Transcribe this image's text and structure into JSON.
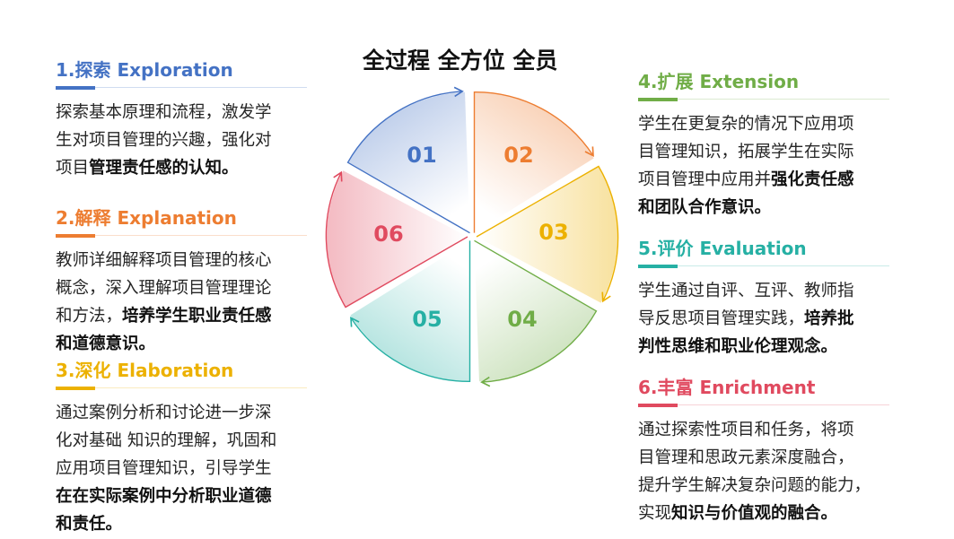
{
  "title": "全过程 全方位 全员",
  "stages": [
    {
      "num": "01",
      "title": "1.探索 Exploration",
      "color": "#4472c4",
      "lines": [
        [
          {
            "t": "探索基本原理和流程，激发学"
          }
        ],
        [
          {
            "t": "生对项目管理的兴趣，强化对"
          }
        ],
        [
          {
            "t": "项目"
          },
          {
            "t": "管理责任感的认知。",
            "b": true
          }
        ]
      ]
    },
    {
      "num": "02",
      "title": "2.解释 Explanation",
      "color": "#ed7d31",
      "lines": [
        [
          {
            "t": " 教师详细解释项目管理的核心"
          }
        ],
        [
          {
            "t": "概念，深入理解项目管理理论"
          }
        ],
        [
          {
            "t": "和方法，"
          },
          {
            "t": "培养学生职业责任感",
            "b": true
          }
        ],
        [
          {
            "t": "和道德意识。",
            "b": true
          }
        ]
      ]
    },
    {
      "num": "03",
      "title": "3.深化 Elaboration",
      "color": "#ecb100",
      "lines": [
        [
          {
            "t": "通过案例分析和讨论进一步深"
          }
        ],
        [
          {
            "t": "化对基础  知识的理解，巩固和"
          }
        ],
        [
          {
            "t": "应用项目管理知识，引导学生"
          }
        ],
        [
          {
            "t": "在在实际案例中分析职业道德",
            "b": true
          }
        ],
        [
          {
            "t": "和责任。",
            "b": true
          }
        ]
      ]
    },
    {
      "num": "04",
      "title": "4.扩展 Extension",
      "color": "#70ad47",
      "lines": [
        [
          {
            "t": "学生在更复杂的情况下应用项"
          }
        ],
        [
          {
            "t": "目管理知识，拓展学生在实际"
          }
        ],
        [
          {
            "t": "项目管理中应用并"
          },
          {
            "t": "强化责任感",
            "b": true
          }
        ],
        [
          {
            "t": "和团队合作意识。",
            "b": true
          }
        ]
      ]
    },
    {
      "num": "05",
      "title": "5.评价 Evaluation",
      "color": "#26b0a4",
      "lines": [
        [
          {
            "t": "学生通过自评、互评、教师指"
          }
        ],
        [
          {
            "t": "导反思项目管理实践，"
          },
          {
            "t": "培养批",
            "b": true
          }
        ],
        [
          {
            "t": "判性思维和职业伦理观念。",
            "b": true
          }
        ]
      ]
    },
    {
      "num": "06",
      "title": "6.丰富 Enrichment",
      "color": "#e04a5f",
      "lines": [
        [
          {
            "t": "通过探索性项目和任务，将项"
          }
        ],
        [
          {
            "t": "目管理和思政元素深度融合，"
          }
        ],
        [
          {
            "t": "提升学生解决复杂问题的能力，"
          }
        ],
        [
          {
            "t": "实现"
          },
          {
            "t": "知识与价值观的融合。",
            "b": true
          }
        ]
      ]
    }
  ]
}
